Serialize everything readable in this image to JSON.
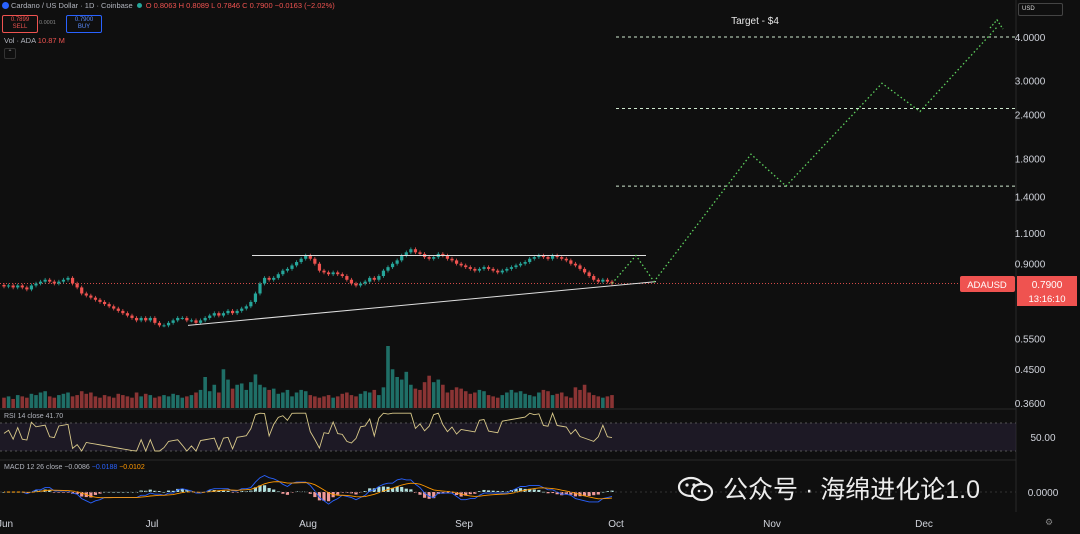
{
  "header": {
    "title": "Cardano / US Dollar · 1D · Coinbase",
    "ohlc": "O 0.8063  H 0.8089  L 0.7846  C 0.7900  −0.0163 (−2.02%)",
    "sell_price": "0.7899",
    "sell_label": "SELL",
    "spread": "0.0001",
    "buy_price": "0.7900",
    "buy_label": "BUY",
    "volume_label": "Vol · ADA",
    "volume_value": "10.87 M",
    "currency": "USD"
  },
  "annotation": "Target - $4",
  "price_tag": {
    "symbol": "ADAUSD",
    "price": "0.7900",
    "countdown": "13:16:10"
  },
  "rsi_label": "RSI 14 close  41.70",
  "rsi_tick": "50.00",
  "macd_label": {
    "name": "MACD 12 26 close",
    "hist": "−0.0086",
    "macd": "−0.0188",
    "signal": "−0.0102"
  },
  "macd_tick": "0.0000",
  "watermark": "公众号 · 海绵进化论1.0",
  "colors": {
    "up": "#26a69a",
    "down": "#ef5350",
    "projection": "#5fd35f",
    "rsi": "#d9c98a",
    "macd": "#2962ff",
    "signal": "#ff9800"
  },
  "chart_data": {
    "type": "candlestick",
    "symbol": "ADAUSD",
    "y_scale": "log",
    "y_ticks": [
      4.0,
      3.0,
      2.4,
      1.8,
      1.4,
      1.1,
      0.9,
      0.79,
      0.55,
      0.45,
      0.36
    ],
    "y_tick_labels": [
      "4.0000",
      "3.0000",
      "2.4000",
      "1.8000",
      "1.4000",
      "1.1000",
      "0.9000",
      "0.7900",
      "0.5500",
      "0.4500",
      "0.3600"
    ],
    "x_labels": [
      "Jun",
      "Jul",
      "Aug",
      "Sep",
      "Oct",
      "Nov",
      "Dec"
    ],
    "close_series": [
      0.775,
      0.78,
      0.77,
      0.78,
      0.77,
      0.76,
      0.78,
      0.79,
      0.8,
      0.81,
      0.8,
      0.79,
      0.8,
      0.81,
      0.82,
      0.79,
      0.77,
      0.74,
      0.73,
      0.72,
      0.71,
      0.7,
      0.69,
      0.68,
      0.67,
      0.66,
      0.65,
      0.64,
      0.63,
      0.62,
      0.63,
      0.62,
      0.63,
      0.61,
      0.6,
      0.6,
      0.61,
      0.62,
      0.63,
      0.63,
      0.62,
      0.62,
      0.61,
      0.62,
      0.63,
      0.64,
      0.65,
      0.64,
      0.65,
      0.66,
      0.65,
      0.66,
      0.67,
      0.68,
      0.7,
      0.74,
      0.79,
      0.82,
      0.81,
      0.82,
      0.84,
      0.86,
      0.87,
      0.89,
      0.91,
      0.93,
      0.95,
      0.93,
      0.9,
      0.86,
      0.85,
      0.84,
      0.85,
      0.84,
      0.83,
      0.81,
      0.79,
      0.78,
      0.79,
      0.8,
      0.82,
      0.81,
      0.83,
      0.86,
      0.88,
      0.9,
      0.92,
      0.95,
      0.97,
      0.99,
      0.97,
      0.96,
      0.94,
      0.93,
      0.94,
      0.96,
      0.95,
      0.93,
      0.92,
      0.9,
      0.89,
      0.88,
      0.87,
      0.86,
      0.87,
      0.88,
      0.87,
      0.86,
      0.85,
      0.86,
      0.87,
      0.88,
      0.89,
      0.9,
      0.91,
      0.93,
      0.94,
      0.95,
      0.94,
      0.93,
      0.95,
      0.94,
      0.93,
      0.92,
      0.9,
      0.89,
      0.87,
      0.85,
      0.83,
      0.81,
      0.8,
      0.81,
      0.8,
      0.79
    ],
    "volume_series": [
      8,
      9,
      7,
      10,
      9,
      8,
      11,
      10,
      12,
      13,
      9,
      8,
      10,
      11,
      12,
      9,
      10,
      13,
      11,
      12,
      9,
      8,
      10,
      9,
      8,
      11,
      10,
      9,
      8,
      12,
      9,
      11,
      10,
      8,
      9,
      10,
      9,
      11,
      10,
      8,
      9,
      10,
      12,
      14,
      24,
      13,
      18,
      12,
      30,
      22,
      15,
      18,
      19,
      14,
      20,
      26,
      18,
      16,
      14,
      15,
      11,
      12,
      14,
      9,
      12,
      14,
      13,
      10,
      9,
      8,
      9,
      10,
      8,
      9,
      11,
      12,
      10,
      9,
      11,
      13,
      12,
      14,
      10,
      16,
      48,
      30,
      24,
      22,
      28,
      18,
      15,
      14,
      20,
      25,
      20,
      22,
      18,
      12,
      14,
      16,
      15,
      13,
      11,
      12,
      14,
      13,
      10,
      9,
      8,
      10,
      12,
      14,
      12,
      13,
      11,
      10,
      9,
      12,
      14,
      13,
      10,
      11,
      12,
      9,
      8,
      16,
      14,
      18,
      12,
      10,
      9,
      8,
      9,
      10
    ],
    "projection_path": [
      [
        0.79,
        "Sep-30"
      ],
      [
        0.95,
        "Oct-5"
      ],
      [
        0.8,
        "Oct-9"
      ],
      [
        1.85,
        "Oct-30"
      ],
      [
        1.5,
        "Nov-8"
      ],
      [
        2.95,
        "Nov-28"
      ],
      [
        2.45,
        "Dec-5"
      ],
      [
        4.3,
        "Dec-20"
      ]
    ],
    "target_levels": [
      4.0,
      2.5,
      1.5
    ],
    "resistance": 0.95,
    "support_trendline": {
      "from": 0.6,
      "to": 0.8
    }
  }
}
